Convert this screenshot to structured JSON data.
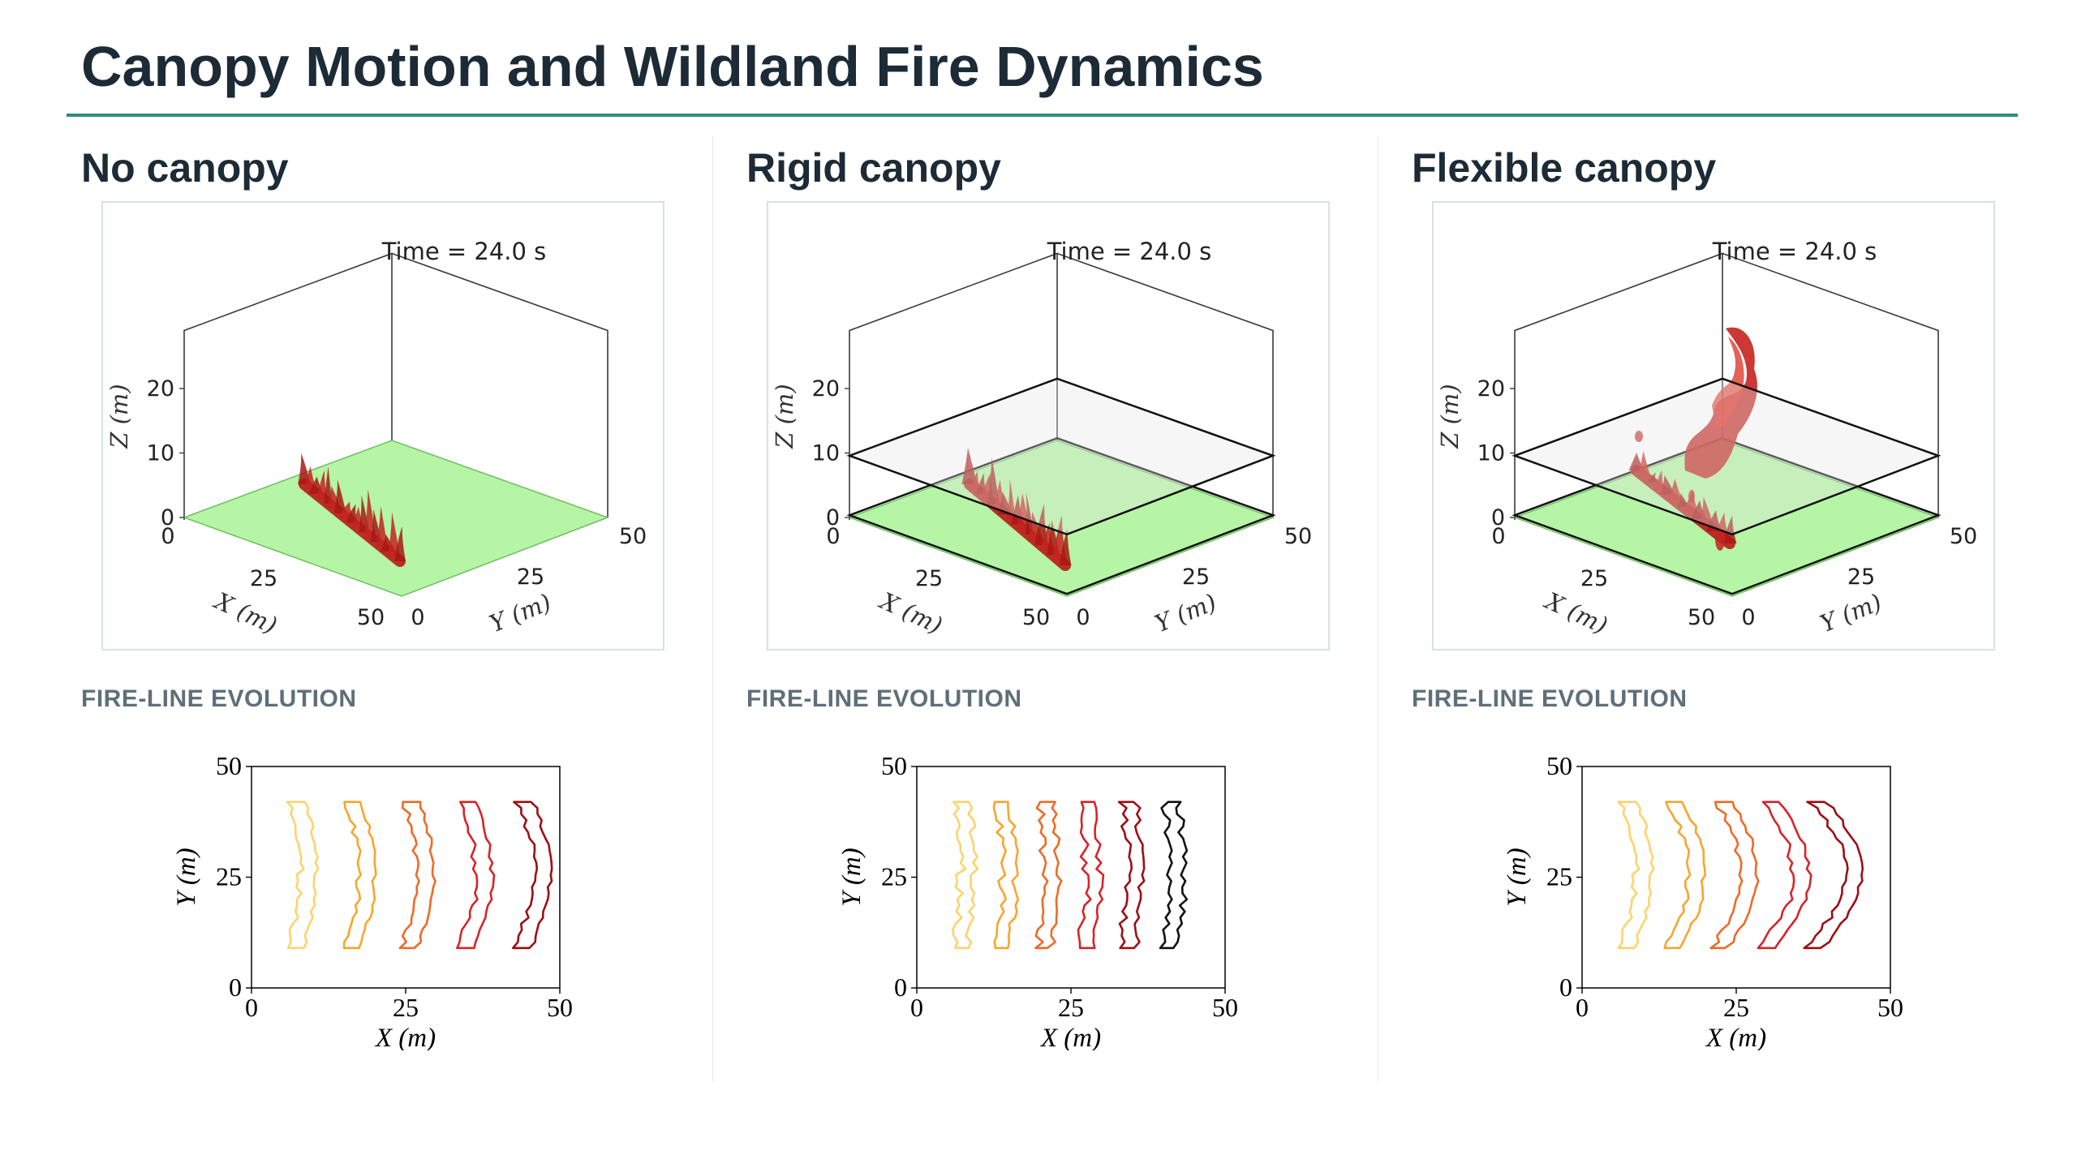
{
  "title": "Canopy Motion and Wildland Fire Dynamics",
  "colors": {
    "accent": "#2f8a88",
    "ground": "#b5f5a5",
    "fire": "#c4231f"
  },
  "panels": [
    {
      "heading": "No canopy",
      "sim3d": {
        "time_label": "Time = 24.0 s",
        "canopy": "none",
        "z_label": "Z (m)",
        "x_label": "X (m)",
        "y_label": "Y (m)",
        "z_ticks": [
          "20",
          "10",
          "0"
        ],
        "x_ticks": [
          "0",
          "25",
          "50"
        ],
        "y_ticks": [
          "0",
          "25",
          "50"
        ]
      },
      "subheading": "FIRE-LINE EVOLUTION",
      "fireline": {
        "xlabel": "X (m)",
        "ylabel": "Y (m)",
        "ticks": [
          "0",
          "25",
          "50"
        ],
        "colors": [
          "#fdd36b",
          "#f8a52c",
          "#ef6a27",
          "#d6242a",
          "#9b0f14"
        ]
      }
    },
    {
      "heading": "Rigid canopy",
      "sim3d": {
        "time_label": "Time = 24.0 s",
        "canopy": "rigid",
        "z_label": "Z (m)",
        "x_label": "X (m)",
        "y_label": "Y (m)",
        "z_ticks": [
          "20",
          "10",
          "0"
        ],
        "x_ticks": [
          "0",
          "25",
          "50"
        ],
        "y_ticks": [
          "0",
          "25",
          "50"
        ]
      },
      "subheading": "FIRE-LINE EVOLUTION",
      "fireline": {
        "xlabel": "X (m)",
        "ylabel": "Y (m)",
        "ticks": [
          "0",
          "25",
          "50"
        ],
        "colors": [
          "#fdd36b",
          "#f8a52c",
          "#ef6a27",
          "#d6242a",
          "#9b0f14",
          "#111111"
        ]
      }
    },
    {
      "heading": "Flexible canopy",
      "sim3d": {
        "time_label": "Time = 24.0 s",
        "canopy": "flexible",
        "z_label": "Z (m)",
        "x_label": "X (m)",
        "y_label": "Y (m)",
        "z_ticks": [
          "20",
          "10",
          "0"
        ],
        "x_ticks": [
          "0",
          "25",
          "50"
        ],
        "y_ticks": [
          "0",
          "25",
          "50"
        ]
      },
      "subheading": "FIRE-LINE EVOLUTION",
      "fireline": {
        "xlabel": "X (m)",
        "ylabel": "Y (m)",
        "ticks": [
          "0",
          "25",
          "50"
        ],
        "colors": [
          "#fdd36b",
          "#f8a52c",
          "#ef6a27",
          "#d6242a",
          "#9b0f14"
        ]
      }
    }
  ]
}
